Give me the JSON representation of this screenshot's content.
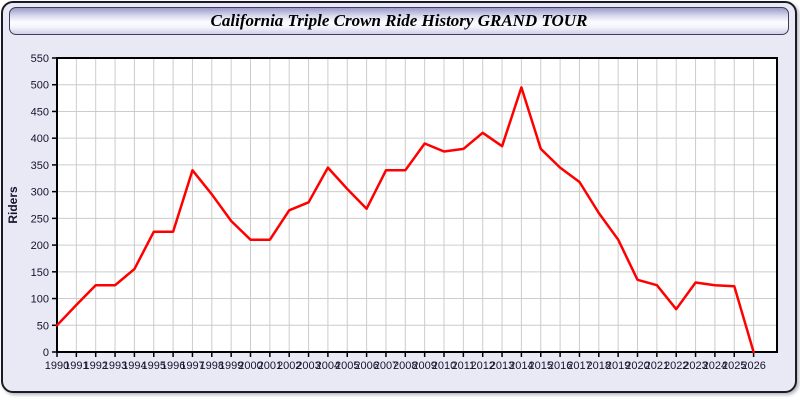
{
  "window": {
    "title": "California Triple Crown Ride History GRAND TOUR"
  },
  "colors": {
    "series": "#ff0000",
    "panel_bg": "#e9e9f6",
    "plot_bg": "#ffffff",
    "grid": "#cccccc",
    "axis": "#000000",
    "tick_label": "#14142c"
  },
  "chart_data": {
    "type": "line",
    "title": "California Triple Crown Ride History GRAND TOUR",
    "xlabel": "",
    "ylabel": "Riders",
    "ylim": [
      0,
      550
    ],
    "ytick_step": 50,
    "grid": true,
    "legend_position": "none",
    "x": [
      1990,
      1991,
      1992,
      1993,
      1994,
      1995,
      1996,
      1997,
      1998,
      1999,
      2000,
      2001,
      2002,
      2003,
      2004,
      2005,
      2006,
      2007,
      2008,
      2009,
      2010,
      2011,
      2012,
      2013,
      2014,
      2015,
      2016,
      2017,
      2018,
      2019,
      2020,
      2021,
      2022,
      2023,
      2024,
      2025,
      2026
    ],
    "values": [
      50,
      88,
      125,
      125,
      155,
      225,
      225,
      340,
      295,
      245,
      210,
      210,
      265,
      280,
      345,
      305,
      268,
      340,
      340,
      390,
      375,
      380,
      410,
      385,
      495,
      380,
      345,
      318,
      260,
      210,
      135,
      125,
      80,
      130,
      125,
      123,
      0
    ]
  }
}
